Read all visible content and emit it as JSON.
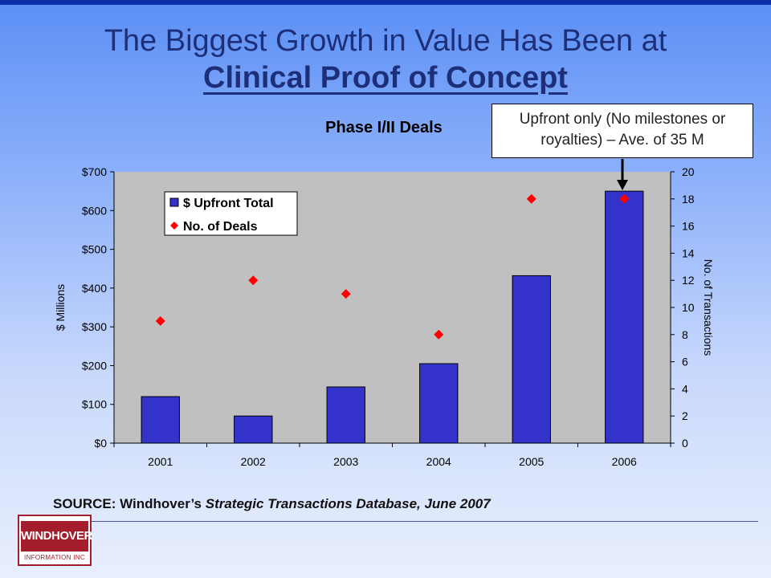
{
  "slide": {
    "title": "The Biggest Growth in Value Has Been at",
    "subtitle": "Clinical Proof of Concept",
    "callout": "Upfront only (No milestones or royalties) – Ave. of 35 M",
    "source_label": "SOURCE:",
    "source_org": "Windhover’s",
    "source_db": "Strategic Transactions Database, June 2007",
    "logo_main": "WINDHOVER",
    "logo_sub": "INFORMATION INC"
  },
  "colors": {
    "bar": "#3333cc",
    "marker": "#ff0000",
    "plot_bg": "#c0c0c0",
    "title_text": "#1e2f7a"
  },
  "chart_data": {
    "type": "bar",
    "title": "Phase I/II Deals",
    "categories": [
      "2001",
      "2002",
      "2003",
      "2004",
      "2005",
      "2006"
    ],
    "series": [
      {
        "name": "$ Upfront Total",
        "type": "bar",
        "axis": "left",
        "values": [
          120,
          70,
          145,
          205,
          432,
          650
        ]
      },
      {
        "name": "No. of Deals",
        "type": "scatter",
        "axis": "right",
        "values": [
          9,
          12,
          11,
          8,
          18,
          18
        ]
      }
    ],
    "ylabel": "$ Millions",
    "y2label": "No. of Transactions",
    "ylim": [
      0,
      700
    ],
    "y2lim": [
      0,
      20
    ],
    "yticks": [
      "$0",
      "$100",
      "$200",
      "$300",
      "$400",
      "$500",
      "$600",
      "$700"
    ],
    "y2ticks": [
      "0",
      "2",
      "4",
      "6",
      "8",
      "10",
      "12",
      "14",
      "16",
      "18",
      "20"
    ],
    "grid": false,
    "legend": "top-left"
  }
}
